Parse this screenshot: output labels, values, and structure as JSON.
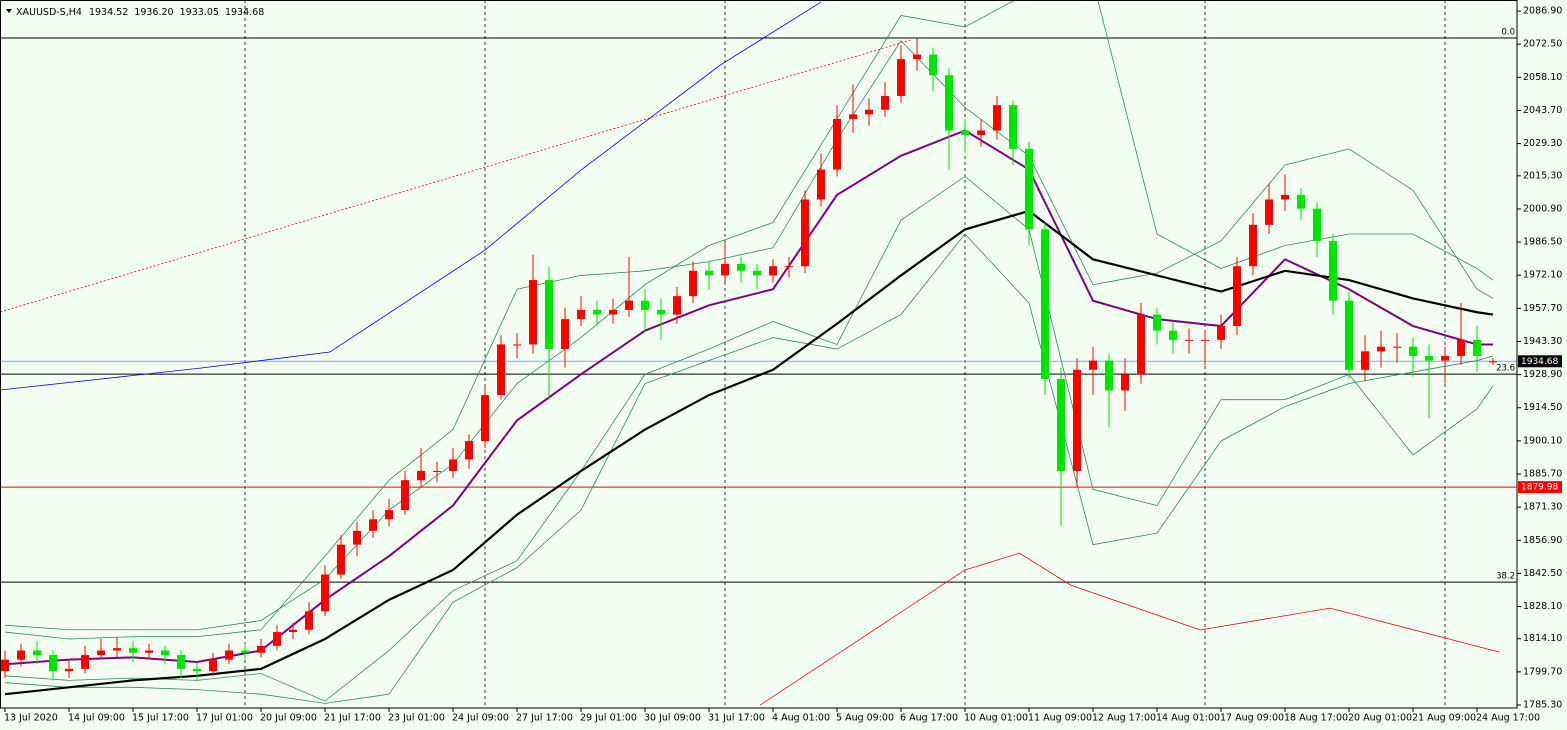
{
  "chart_data": {
    "type": "candlestick",
    "title": "XAUUSD-S,H4",
    "quote": [
      {
        "value": 1934.52,
        "label": "1934.52"
      },
      {
        "value": 1936.2,
        "label": "1936.20"
      },
      {
        "value": 1933.05,
        "label": "1933.05"
      },
      {
        "value": 1934.68,
        "label": "1934.68"
      }
    ],
    "up_color": "#ff0000",
    "down_color": "#00e600",
    "categories": [
      "13 Jul 2020",
      null,
      null,
      null,
      "14 Jul 09:00",
      null,
      null,
      null,
      "15 Jul 17:00",
      null,
      null,
      null,
      "17 Jul 01:00",
      null,
      null,
      null,
      "20 Jul 09:00",
      null,
      null,
      null,
      "21 Jul 17:00",
      null,
      null,
      null,
      "23 Jul 01:00",
      null,
      null,
      null,
      "24 Jul 09:00",
      null,
      null,
      null,
      "27 Jul 17:00",
      null,
      null,
      null,
      "29 Jul 01:00",
      null,
      null,
      null,
      "30 Jul 09:00",
      null,
      null,
      null,
      "31 Jul 17:00",
      null,
      null,
      null,
      "4 Aug 01:00",
      null,
      null,
      null,
      "5 Aug 09:00",
      null,
      null,
      null,
      "6 Aug 17:00",
      null,
      null,
      null,
      "10 Aug 01:00",
      null,
      null,
      null,
      "11 Aug 09:00",
      null,
      null,
      null,
      "12 Aug 17:00",
      null,
      null,
      null,
      "14 Aug 01:00",
      null,
      null,
      null,
      "17 Aug 09:00",
      null,
      null,
      null,
      "18 Aug 17:00",
      null,
      null,
      null,
      "20 Aug 01:00",
      null,
      null,
      null,
      "21 Aug 09:00",
      null,
      null,
      null,
      "24 Aug 17:00",
      null
    ],
    "open": [
      1800,
      1805,
      1809,
      1807,
      1800,
      1801,
      1807,
      1809,
      1810,
      1808,
      1809,
      1807,
      1801,
      1800,
      1805,
      1809,
      1808,
      1811,
      1817,
      1818,
      1826,
      1842,
      1855,
      1861,
      1866,
      1870,
      1883,
      1887,
      1887,
      1892,
      1900,
      1920,
      1942,
      1942,
      1970,
      1940,
      1953,
      1957,
      1955,
      1957,
      1961,
      1957,
      1955,
      1963,
      1974,
      1972,
      1977,
      1974,
      1972,
      1976,
      1976,
      2005,
      2018,
      2040,
      2042,
      2044,
      2050,
      2066,
      2068,
      2059,
      2035,
      2033,
      2035,
      2046,
      2027,
      1992,
      1927,
      1887,
      1931,
      1935,
      1922,
      1929,
      1955,
      1948,
      1944,
      1944,
      1944,
      1950,
      1976,
      1994,
      2005,
      2007,
      2001,
      1987,
      1961,
      1931,
      1939,
      1941,
      1941,
      1937,
      1935,
      1937,
      1944,
      1934.52
    ],
    "high": [
      1809,
      1812,
      1813,
      1809,
      1805,
      1811,
      1814,
      1815,
      1813,
      1812,
      1811,
      1809,
      1804,
      1808,
      1812,
      1812,
      1814,
      1820,
      1821,
      1830,
      1846,
      1859,
      1865,
      1870,
      1875,
      1887,
      1897,
      1891,
      1897,
      1903,
      1924,
      1946,
      1947,
      1981,
      1976,
      1958,
      1963,
      1961,
      1962,
      1980,
      1966,
      1962,
      1967,
      1978,
      1978,
      1986,
      1980,
      1977,
      1979,
      1980,
      2009,
      2025,
      2046,
      2055,
      2049,
      2056,
      2072,
      2075,
      2071,
      2062,
      2040,
      2040,
      2050,
      2048,
      2030,
      1995,
      1932,
      1936,
      1941,
      1938,
      1936,
      1960,
      1958,
      1952,
      1949,
      1948,
      1955,
      1980,
      1999,
      2012,
      2016,
      2010,
      2004,
      1990,
      1965,
      1946,
      1948,
      1947,
      1945,
      1942,
      1941,
      1960,
      1950,
      1936.2
    ],
    "low": [
      1797,
      1802,
      1803,
      1796,
      1797,
      1799,
      1805,
      1806,
      1804,
      1805,
      1803,
      1797,
      1796,
      1798,
      1803,
      1805,
      1806,
      1809,
      1814,
      1816,
      1824,
      1840,
      1850,
      1858,
      1863,
      1868,
      1880,
      1882,
      1884,
      1888,
      1897,
      1918,
      1936,
      1938,
      1918,
      1932,
      1950,
      1950,
      1951,
      1954,
      1948,
      1944,
      1951,
      1960,
      1966,
      1968,
      1969,
      1966,
      1969,
      1971,
      1973,
      2002,
      2015,
      2034,
      2037,
      2041,
      2047,
      2061,
      2052,
      2018,
      2025,
      2028,
      2031,
      2020,
      1985,
      1920,
      1863,
      1880,
      1920,
      1906,
      1913,
      1925,
      1942,
      1938,
      1938,
      1933,
      1940,
      1946,
      1972,
      1990,
      2000,
      1996,
      1980,
      1955,
      1927,
      1926,
      1932,
      1934,
      1928,
      1910,
      1925,
      1933,
      1930,
      1933.05
    ],
    "close": [
      1805,
      1809,
      1807,
      1800,
      1801,
      1807,
      1809,
      1810,
      1808,
      1809,
      1807,
      1801,
      1800,
      1805,
      1809,
      1808,
      1811,
      1817,
      1818,
      1826,
      1842,
      1855,
      1861,
      1866,
      1870,
      1883,
      1887,
      1887,
      1892,
      1900,
      1920,
      1942,
      1942,
      1970,
      1940,
      1953,
      1957,
      1955,
      1957,
      1961,
      1957,
      1955,
      1963,
      1974,
      1972,
      1977,
      1974,
      1972,
      1976,
      1976,
      2005,
      2018,
      2040,
      2042,
      2044,
      2050,
      2066,
      2068,
      2059,
      2035,
      2033,
      2035,
      2046,
      2027,
      1992,
      1927,
      1887,
      1931,
      1935,
      1922,
      1929,
      1955,
      1948,
      1944,
      1944,
      1944,
      1950,
      1976,
      1994,
      2005,
      2007,
      2001,
      1987,
      1961,
      1931,
      1939,
      1941,
      1941,
      1937,
      1935,
      1937,
      1944,
      1937,
      1934.68
    ],
    "ylim": [
      1784.0,
      2091.7
    ],
    "yticks": [
      {
        "value": 2086.9,
        "label": "2086.90"
      },
      {
        "value": 2072.5,
        "label": "2072.50"
      },
      {
        "value": 2058.1,
        "label": "2058.10"
      },
      {
        "value": 2043.7,
        "label": "2043.70"
      },
      {
        "value": 2029.3,
        "label": "2029.30"
      },
      {
        "value": 2015.3,
        "label": "2015.30"
      },
      {
        "value": 2000.9,
        "label": "2000.90"
      },
      {
        "value": 1986.5,
        "label": "1986.50"
      },
      {
        "value": 1972.1,
        "label": "1972.10"
      },
      {
        "value": 1957.7,
        "label": "1957.70"
      },
      {
        "value": 1943.3,
        "label": "1943.30"
      },
      {
        "value": 1928.9,
        "label": "1928.90"
      },
      {
        "value": 1914.5,
        "label": "1914.50"
      },
      {
        "value": 1900.1,
        "label": "1900.10"
      },
      {
        "value": 1885.7,
        "label": "1885.70"
      },
      {
        "value": 1871.3,
        "label": "1871.30"
      },
      {
        "value": 1856.9,
        "label": "1856.90"
      },
      {
        "value": 1842.5,
        "label": "1842.50"
      },
      {
        "value": 1828.1,
        "label": "1828.10"
      },
      {
        "value": 1814.1,
        "label": "1814.10"
      },
      {
        "value": 1799.7,
        "label": "1799.70"
      },
      {
        "value": 1785.3,
        "label": "1785.30"
      }
    ],
    "grid": false,
    "separators": [
      15,
      30,
      45,
      60,
      75,
      90
    ],
    "lines": [
      {
        "color": "#2e8b57",
        "width": 0.8,
        "x": [
          0,
          4,
          8,
          12,
          16,
          20,
          24,
          28,
          32,
          36,
          40,
          44,
          48,
          52,
          56,
          60,
          64,
          68,
          72,
          76,
          80,
          84,
          88,
          92,
          93
        ],
        "values": [
          1820,
          1818,
          1818,
          1818,
          1822,
          1840,
          1870,
          1890,
          1925,
          1945,
          1968,
          1985,
          1995,
          2040,
          2085,
          2080,
          2095,
          2100,
          1990,
          1975,
          1985,
          1990,
          1990,
          1975,
          1970
        ]
      },
      {
        "color": "#2e8b57",
        "width": 0.8,
        "x": [
          0,
          4,
          8,
          12,
          16,
          20,
          24,
          28,
          32,
          36,
          40,
          44,
          48,
          52,
          56,
          60,
          64,
          68,
          72,
          76,
          80,
          84,
          88,
          92,
          93
        ],
        "values": [
          1795,
          1793,
          1793,
          1792,
          1790,
          1786,
          1790,
          1830,
          1845,
          1870,
          1925,
          1935,
          1945,
          1940,
          1955,
          1990,
          1960,
          1855,
          1860,
          1900,
          1915,
          1925,
          1930,
          1935,
          1937
        ]
      },
      {
        "color": "#2e8b57",
        "width": 0.8,
        "x": [
          0,
          4,
          8,
          12,
          16,
          20,
          24,
          28,
          32,
          36,
          40,
          44,
          48,
          52,
          56,
          60,
          64,
          68,
          72,
          76,
          80,
          84,
          88,
          92,
          93
        ],
        "values": [
          1817,
          1814,
          1815,
          1815,
          1818,
          1850,
          1883,
          1905,
          1966,
          1972,
          1974,
          1978,
          1984,
          2031,
          2074,
          2045,
          2024,
          1968,
          1973,
          1987,
          2020,
          2027,
          2009,
          1966,
          1962
        ]
      },
      {
        "color": "#2e8b57",
        "width": 0.8,
        "x": [
          0,
          4,
          8,
          12,
          16,
          20,
          24,
          28,
          32,
          36,
          40,
          44,
          48,
          52,
          56,
          60,
          64,
          68,
          72,
          76,
          80,
          84,
          88,
          92,
          93
        ],
        "values": [
          1798,
          1796,
          1797,
          1796,
          1799,
          1787,
          1809,
          1835,
          1848,
          1887,
          1929,
          1940,
          1952,
          1942,
          1996,
          2015,
          1992,
          1879,
          1872,
          1918,
          1918,
          1929,
          1894,
          1914,
          1924
        ]
      },
      {
        "color": "#800080",
        "width": 2,
        "x": [
          0,
          4,
          8,
          12,
          16,
          20,
          24,
          28,
          32,
          36,
          40,
          44,
          48,
          52,
          56,
          60,
          64,
          68,
          72,
          76,
          80,
          84,
          88,
          92,
          93
        ],
        "values": [
          1803,
          1805,
          1806,
          1804,
          1809,
          1831,
          1850,
          1872,
          1909,
          1929,
          1948,
          1959,
          1966,
          2007,
          2024,
          2035,
          2018,
          1961,
          1953,
          1950,
          1979,
          1966,
          1950,
          1942,
          1942
        ]
      },
      {
        "color": "#000000",
        "width": 2.2,
        "x": [
          0,
          4,
          8,
          12,
          16,
          20,
          24,
          28,
          32,
          36,
          40,
          44,
          48,
          52,
          56,
          60,
          64,
          68,
          72,
          76,
          80,
          84,
          88,
          92,
          93
        ],
        "values": [
          1790,
          1793,
          1796,
          1798,
          1801,
          1814,
          1831,
          1844,
          1868,
          1887,
          1905,
          1920,
          1931,
          1951,
          1972,
          1992,
          2000,
          1979,
          1972,
          1965,
          1974,
          1970,
          1962,
          1956,
          1955
        ]
      },
      {
        "color": "#0000ff",
        "width": 0.8,
        "x": [
          -0.3,
          12.2,
          20.3,
          30,
          36,
          44.7,
          51
        ],
        "values": [
          1922.2,
          1931.7,
          1938.7,
          1983,
          2017.8,
          2063.4,
          2090.8
        ]
      },
      {
        "color": "#ff0000",
        "width": 0.8,
        "x": [
          47.2,
          60,
          63.4,
          66.6,
          74.7,
          82.8,
          93.4
        ],
        "values": [
          1785.3,
          1844,
          1851.3,
          1837.4,
          1817.9,
          1827.4,
          1808.3
        ]
      },
      {
        "color": "#ff0000",
        "width": 0.8,
        "dashed": true,
        "x": [
          -0.3,
          56.6
        ],
        "values": [
          1956.1,
          2074.3
        ]
      }
    ],
    "fib_levels": [
      {
        "value": 2075.2,
        "label": "0.0"
      },
      {
        "value": 1929.1,
        "label": "23.6"
      },
      {
        "value": 1838.7,
        "label": "38.2"
      }
    ],
    "price_lines": [
      {
        "value": 1934.68,
        "label": "1934.68",
        "color": "#000000",
        "line_color": "#8fa8c8"
      },
      {
        "value": 1879.98,
        "label": "1879.98",
        "color": "#ff0000",
        "line_color": "#ff0000"
      }
    ]
  }
}
